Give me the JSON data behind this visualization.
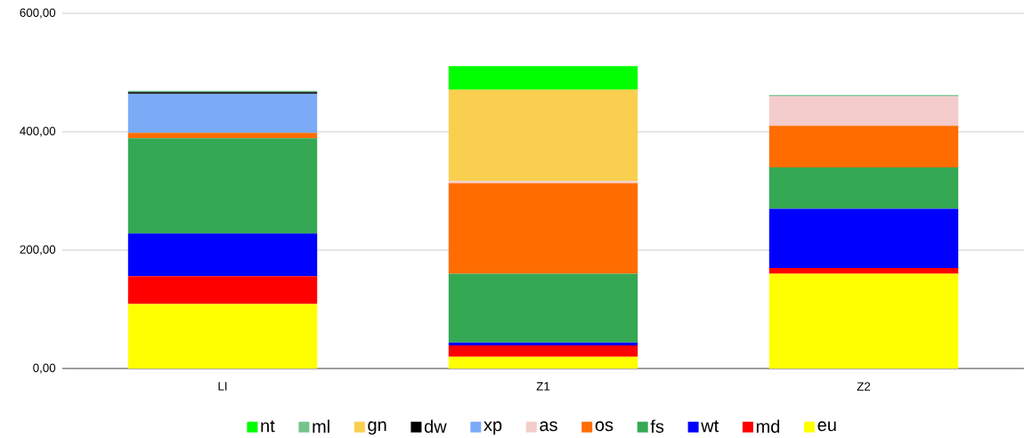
{
  "chart_data": {
    "type": "bar",
    "stacked": true,
    "categories": [
      "LI",
      "Z1",
      "Z2"
    ],
    "series": [
      {
        "name": "eu",
        "color": "#ffff00",
        "values": [
          109,
          20,
          160
        ]
      },
      {
        "name": "md",
        "color": "#ff0000",
        "values": [
          47,
          19,
          10
        ]
      },
      {
        "name": "wt",
        "color": "#0000ff",
        "values": [
          72,
          5,
          100
        ]
      },
      {
        "name": "fs",
        "color": "#34a853",
        "values": [
          161,
          116,
          70
        ]
      },
      {
        "name": "os",
        "color": "#ff6d01",
        "values": [
          9,
          153,
          70
        ]
      },
      {
        "name": "as",
        "color": "#f4cccc",
        "values": [
          0,
          4,
          50
        ]
      },
      {
        "name": "xp",
        "color": "#7baaf7",
        "values": [
          66,
          0,
          0
        ]
      },
      {
        "name": "dw",
        "color": "#000000",
        "values": [
          3,
          0,
          0
        ]
      },
      {
        "name": "gn",
        "color": "#f9cf4f",
        "values": [
          0,
          154,
          0
        ]
      },
      {
        "name": "ml",
        "color": "#74c48a",
        "values": [
          2,
          0,
          2
        ]
      },
      {
        "name": "nt",
        "color": "#00ff00",
        "values": [
          0,
          40,
          0
        ]
      }
    ],
    "ylim": [
      0,
      600
    ],
    "yticks": [
      {
        "value": 0,
        "label": "0,00"
      },
      {
        "value": 200,
        "label": "200,00"
      },
      {
        "value": 400,
        "label": "400,00"
      },
      {
        "value": 600,
        "label": "600,00"
      }
    ],
    "grid": "y",
    "legend": "bottom"
  }
}
